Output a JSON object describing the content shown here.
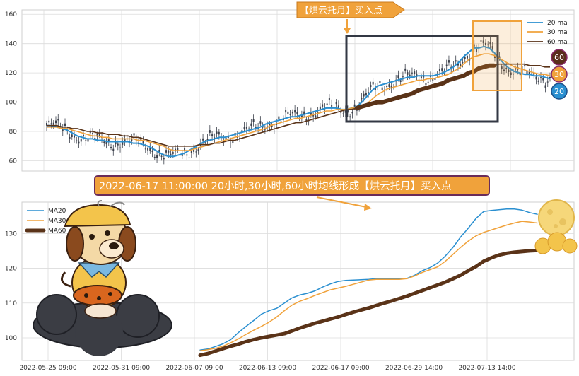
{
  "colors": {
    "ma20": "#2a8fd0",
    "ma30": "#f0a23b",
    "ma60": "#5a3318",
    "candle": "#3a3f4a",
    "callout_fill": "#f0a23b",
    "callout_border": "#6a2c5a",
    "badge_60": "#5a2e1c",
    "badge_30": "#f0a23b",
    "badge_20": "#2a8fd0",
    "highlight_box": "#f0a23b",
    "dark_box": "#333844",
    "grid": "#dcdcdc",
    "plot_bg": "#ffffff"
  },
  "annotations": {
    "top_callout": "【烘云托月】买入点",
    "main_callout": "2022-06-17 11:00:00 20小时,30小时,60小时均线形成【烘云托月】买入点",
    "badges": [
      "60",
      "30",
      "20"
    ]
  },
  "illustrations": {
    "left": "cartoon-dog-on-cloud",
    "right": "full-moon-with-clouds"
  },
  "chart_data": [
    {
      "type": "line",
      "panel": "top",
      "yticks": [
        "60",
        "80",
        "100",
        "120",
        "140",
        "160"
      ],
      "ylim": [
        53,
        163
      ],
      "x_count": 100,
      "legend_position": "top-right",
      "has_candles": true,
      "series": [
        {
          "name": "20 ma",
          "key": "ma20",
          "values": [
            84,
            84,
            83,
            82,
            81,
            79,
            77,
            76,
            75,
            75,
            74,
            74,
            73,
            73,
            73,
            73,
            73,
            72,
            72,
            71,
            70,
            68,
            66,
            64,
            63,
            63,
            64,
            65,
            67,
            69,
            71,
            73,
            74,
            75,
            76,
            76,
            77,
            78,
            79,
            80,
            81,
            82,
            83,
            85,
            86,
            87,
            88,
            89,
            90,
            90,
            91,
            92,
            93,
            94,
            95,
            96,
            96,
            96,
            95,
            95,
            96,
            97,
            100,
            104,
            108,
            111,
            112,
            113,
            114,
            115,
            116,
            117,
            117,
            118,
            118,
            118,
            118,
            119,
            120,
            122,
            124,
            127,
            131,
            134,
            137,
            137,
            138,
            137,
            134,
            130,
            126,
            123,
            121,
            120,
            119,
            119,
            118,
            118,
            117,
            116
          ]
        },
        {
          "name": "30 ma",
          "key": "ma30",
          "values": [
            83,
            83,
            83,
            82,
            82,
            81,
            80,
            79,
            78,
            77,
            77,
            76,
            76,
            75,
            75,
            75,
            75,
            75,
            74,
            74,
            73,
            72,
            71,
            70,
            68,
            67,
            67,
            67,
            67,
            68,
            69,
            70,
            71,
            72,
            73,
            74,
            75,
            76,
            77,
            78,
            79,
            80,
            81,
            82,
            84,
            85,
            86,
            87,
            88,
            89,
            89,
            90,
            91,
            92,
            93,
            94,
            94,
            95,
            95,
            95,
            96,
            96,
            97,
            99,
            102,
            105,
            107,
            109,
            110,
            111,
            112,
            113,
            114,
            115,
            115,
            116,
            116,
            117,
            118,
            119,
            121,
            123,
            126,
            129,
            131,
            132,
            133,
            133,
            132,
            130,
            128,
            126,
            124,
            123,
            122,
            121,
            120,
            119,
            119,
            118
          ]
        },
        {
          "name": "60 ma",
          "key": "ma60",
          "values": [
            84,
            84,
            84,
            83,
            83,
            82,
            82,
            81,
            80,
            80,
            79,
            79,
            78,
            78,
            78,
            77,
            77,
            76,
            76,
            75,
            74,
            73,
            72,
            71,
            70,
            70,
            70,
            70,
            70,
            70,
            71,
            71,
            71,
            72,
            72,
            73,
            74,
            74,
            75,
            76,
            77,
            78,
            79,
            80,
            81,
            82,
            83,
            84,
            85,
            86,
            86,
            87,
            88,
            89,
            90,
            91,
            92,
            93,
            94,
            95,
            95,
            96,
            97,
            98,
            99,
            100,
            100,
            101,
            102,
            103,
            104,
            105,
            106,
            108,
            109,
            110,
            111,
            112,
            113,
            115,
            116,
            117,
            118,
            120,
            121,
            123,
            124,
            125,
            125,
            126,
            126,
            126,
            126,
            126,
            126,
            125,
            125,
            125,
            124,
            124
          ]
        }
      ]
    },
    {
      "type": "line",
      "panel": "bottom",
      "yticks": [
        "100",
        "110",
        "120",
        "130"
      ],
      "ylim": [
        93.5,
        139
      ],
      "xticks": [
        "2022-05-25 09:00",
        "2022-05-31 09:00",
        "2022-06-07 09:00",
        "2022-06-13 09:00",
        "2022-06-17 09:00",
        "2022-06-29 14:00",
        "2022-07-13 14:00"
      ],
      "x_count": 50,
      "legend_position": "top-left",
      "series": [
        {
          "name": "MA20",
          "key": "ma20",
          "values": [
            96.5,
            96.8,
            97.5,
            98.3,
            99.5,
            101.5,
            103.3,
            105,
            106.8,
            107.8,
            108.5,
            110,
            111.5,
            112.3,
            112.8,
            113.5,
            114.6,
            115.5,
            116.2,
            116.5,
            116.6,
            116.7,
            116.8,
            117,
            117,
            117,
            117,
            117.1,
            118,
            119.3,
            120.2,
            121.5,
            123.5,
            126,
            129,
            131.5,
            134.3,
            136.3,
            136.6,
            136.8,
            137,
            137,
            136.7,
            136,
            135.5
          ]
        },
        {
          "name": "MA30",
          "key": "ma30",
          "values": [
            96.3,
            96.6,
            97,
            97.6,
            98.6,
            99.7,
            101,
            102.2,
            103.3,
            104.5,
            106,
            107.8,
            109.4,
            110.5,
            111.3,
            112.2,
            113,
            113.8,
            114.3,
            114.8,
            115.4,
            116,
            116.6,
            116.8,
            116.8,
            116.8,
            116.8,
            117,
            117.8,
            118.8,
            119.6,
            120.4,
            122,
            124,
            126,
            127.8,
            129.3,
            130.3,
            131,
            131.7,
            132.4,
            133,
            133.5,
            133.3,
            133
          ]
        },
        {
          "name": "MA60",
          "key": "ma60",
          "values": [
            95,
            95.5,
            96.2,
            96.9,
            97.6,
            98.2,
            98.9,
            99.5,
            100,
            100.4,
            100.8,
            101.2,
            102,
            102.8,
            103.5,
            104.2,
            104.8,
            105.4,
            106,
            106.7,
            107.4,
            108,
            108.6,
            109.3,
            110,
            110.6,
            111.3,
            112,
            112.8,
            113.6,
            114.4,
            115.2,
            116,
            117,
            118,
            119.3,
            120.5,
            122,
            123,
            123.8,
            124.3,
            124.6,
            124.8,
            125,
            125.1
          ]
        }
      ]
    }
  ]
}
